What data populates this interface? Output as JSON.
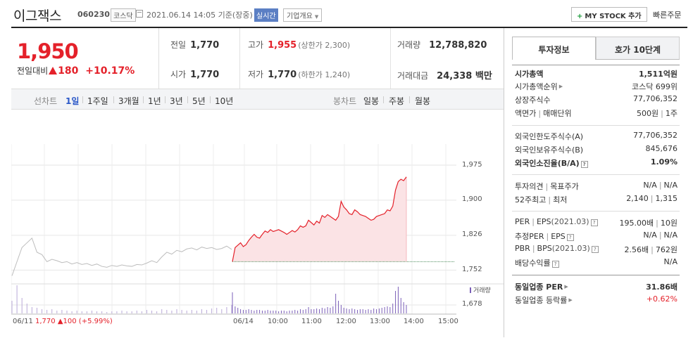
{
  "header": {
    "name": "이그잭스",
    "code": "060230",
    "market": "코스닥",
    "time": "2021.06.14 14:05 기준(장중)",
    "realtime": "실시간",
    "corp_info": "기업개요",
    "mystock": "MY STOCK 추가",
    "quick": "빠른주문"
  },
  "quote": {
    "price": "1,950",
    "diff_label": "전일대비",
    "diff": "180",
    "rate": "+10.17%",
    "prev_label": "전일",
    "prev": "1,770",
    "high_label": "고가",
    "high": "1,955",
    "upper_limit": "(상한가 2,300)",
    "volume_label": "거래량",
    "volume": "12,788,820",
    "open_label": "시가",
    "open": "1,770",
    "low_label": "저가",
    "low": "1,770",
    "lower_limit": "(하한가 1,240)",
    "amount_label": "거래대금",
    "amount": "24,338 백만"
  },
  "tabs": {
    "line_label": "선차트",
    "line": [
      "1일",
      "1주일",
      "3개월",
      "1년",
      "3년",
      "5년",
      "10년"
    ],
    "candle_label": "봉차트",
    "candle": [
      "일봉",
      "주봉",
      "월봉"
    ]
  },
  "chart_bottom": {
    "date": "06/11",
    "price": "1,770",
    "change": "▲100 (+5.99%)",
    "vol_label": "거래량",
    "x_ticks": [
      "06/14",
      "10:00",
      "11:00",
      "12:00",
      "13:00",
      "14:00",
      "15:00"
    ],
    "y_ticks": [
      "1,975",
      "1,900",
      "1,826",
      "1,752",
      "1,678"
    ]
  },
  "chart_data": {
    "type": "line",
    "title": "",
    "xlabel": "",
    "ylabel": "",
    "ylim": [
      1678,
      1975
    ],
    "baseline": 1770,
    "prev_day": [
      1740,
      1770,
      1800,
      1810,
      1820,
      1790,
      1785,
      1770,
      1775,
      1772,
      1768,
      1770,
      1765,
      1768,
      1764,
      1766,
      1762,
      1765,
      1760,
      1758,
      1762,
      1760,
      1763,
      1761,
      1760,
      1764,
      1763,
      1767,
      1772,
      1768,
      1780,
      1790,
      1786,
      1794,
      1791,
      1797,
      1799,
      1795,
      1801,
      1798,
      1800,
      1796,
      1798,
      1803,
      1796
    ],
    "today": [
      1770,
      1800,
      1805,
      1810,
      1802,
      1806,
      1815,
      1822,
      1828,
      1822,
      1820,
      1828,
      1835,
      1832,
      1838,
      1834,
      1836,
      1838,
      1835,
      1832,
      1828,
      1832,
      1836,
      1833,
      1838,
      1846,
      1843,
      1846,
      1858,
      1853,
      1848,
      1856,
      1852,
      1868,
      1864,
      1870,
      1866,
      1862,
      1858,
      1866,
      1898,
      1886,
      1880,
      1872,
      1870,
      1880,
      1876,
      1870,
      1868,
      1866,
      1862,
      1858,
      1860,
      1866,
      1868,
      1870,
      1872,
      1880,
      1878,
      1888,
      1922,
      1940,
      1945,
      1942,
      1950
    ],
    "volume_prev": [
      18,
      40,
      22,
      14,
      9,
      8,
      6,
      5,
      6,
      4,
      5,
      4,
      3,
      4,
      3,
      3,
      4,
      3,
      3,
      2,
      3,
      3,
      4,
      3,
      3,
      4,
      3,
      5,
      4,
      3,
      6,
      5,
      4,
      6,
      5,
      4,
      5,
      4,
      6,
      5,
      7,
      8,
      6,
      9,
      12
    ],
    "volume_today": [
      30,
      10,
      8,
      6,
      5,
      5,
      6,
      5,
      4,
      5,
      5,
      4,
      4,
      5,
      4,
      4,
      4,
      3,
      4,
      4,
      3,
      4,
      4,
      5,
      4,
      6,
      5,
      6,
      9,
      6,
      6,
      7,
      6,
      8,
      7,
      9,
      8,
      10,
      28,
      18,
      12,
      8,
      7,
      6,
      7,
      6,
      5,
      6,
      6,
      5,
      6,
      5,
      7,
      6,
      7,
      8,
      9,
      10,
      9,
      14,
      32,
      38,
      22,
      16,
      12
    ]
  },
  "panel": {
    "tab_info": "투자정보",
    "tab_order": "호가 10단계",
    "rows1": [
      {
        "k": "시가총액",
        "v": "1,511억원"
      },
      {
        "k": "시가총액순위",
        "v": "코스닥 699위"
      },
      {
        "k": "상장주식수",
        "v": "77,706,352"
      },
      {
        "k": "액면가",
        "k2": "매매단위",
        "v": "500원",
        "v2": "1주"
      }
    ],
    "rows2": [
      {
        "k": "외국인한도주식수(A)",
        "v": "77,706,352"
      },
      {
        "k": "외국인보유주식수(B)",
        "v": "845,676"
      },
      {
        "k": "외국인소진율(B/A)",
        "v": "1.09%"
      }
    ],
    "rows3": [
      {
        "k": "투자의견",
        "k2": "목표주가",
        "v": "N/A",
        "v2": "N/A"
      },
      {
        "k": "52주최고",
        "k2": "최저",
        "v": "2,140",
        "v2": "1,315"
      }
    ],
    "rows4": [
      {
        "k": "PER",
        "k2": "EPS",
        "k3": "(2021.03)",
        "v": "195.00배",
        "v2": "10원"
      },
      {
        "k": "추정PER",
        "k2": "EPS",
        "v": "N/A",
        "v2": "N/A"
      },
      {
        "k": "PBR",
        "k2": "BPS",
        "k3": "(2021.03)",
        "v": "2.56배",
        "v2": "762원"
      },
      {
        "k": "배당수익률",
        "v": "N/A"
      }
    ],
    "rows5": [
      {
        "k": "동일업종 PER",
        "v": "31.86배"
      },
      {
        "k": "동일업종 등락률",
        "v": "+0.62%"
      }
    ]
  }
}
